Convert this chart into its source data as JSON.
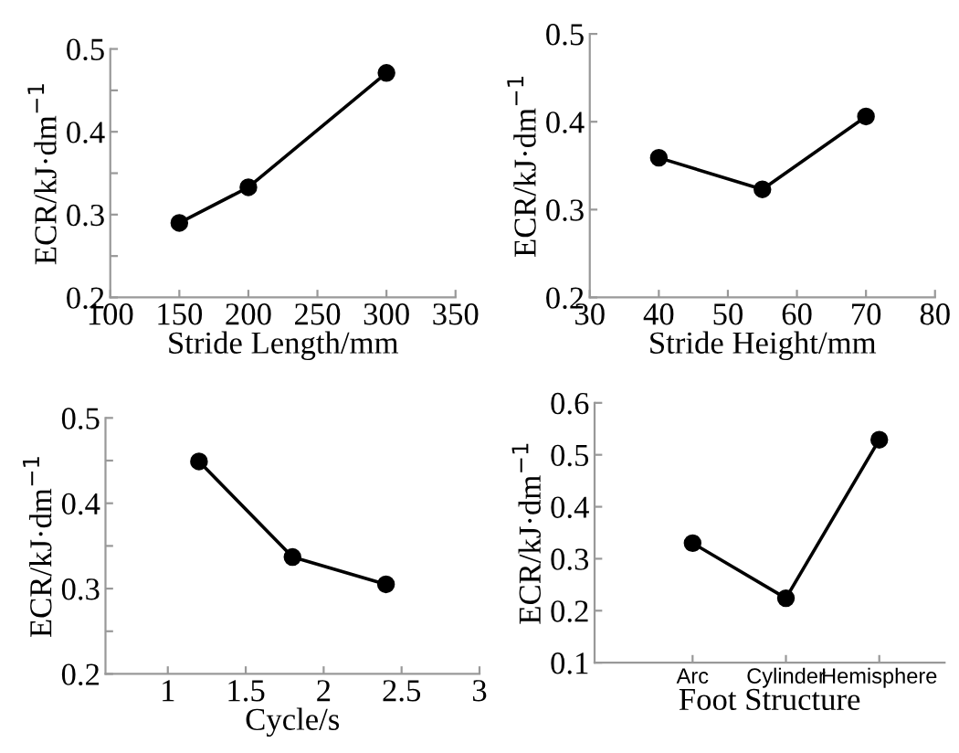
{
  "chart_data": [
    {
      "type": "line",
      "xlabel": "Stride Length/mm",
      "ylabel": "ECR/kJ·dm$^{−1}$",
      "x": [
        150,
        200,
        300
      ],
      "values": [
        0.29,
        0.333,
        0.471
      ],
      "color": "#000000",
      "marker": "circle",
      "line_style": "solid",
      "grid": false,
      "xlim": [
        100,
        350
      ],
      "xticks": [
        100,
        150,
        200,
        250,
        300,
        350
      ],
      "ylim": [
        0.2,
        0.5
      ],
      "yticks": [
        0.2,
        {
          "value": 0.25,
          "label": null
        },
        0.3,
        {
          "value": 0.35,
          "label": null
        },
        0.4,
        {
          "value": 0.45,
          "label": null
        },
        0.5
      ]
    },
    {
      "type": "line",
      "xlabel": "Stride Height/mm",
      "ylabel": "ECR/kJ·dm$^{−1}$",
      "x": [
        40,
        55,
        70
      ],
      "values": [
        0.359,
        0.323,
        0.406
      ],
      "color": "#000000",
      "marker": "circle",
      "line_style": "solid",
      "grid": false,
      "xlim": [
        30,
        80
      ],
      "xticks": [
        30,
        40,
        50,
        60,
        70,
        80
      ],
      "ylim": [
        0.2,
        0.5
      ],
      "yticks": [
        0.2,
        0.3,
        0.4,
        0.5
      ]
    },
    {
      "type": "line",
      "xlabel": "Cycle/s",
      "ylabel": "ECR/kJ·dm$^{−1}$",
      "x": [
        1.2,
        1.8,
        2.4
      ],
      "values": [
        0.449,
        0.337,
        0.305
      ],
      "color": "#000000",
      "marker": "circle",
      "line_style": "solid",
      "grid": false,
      "xlim": [
        0.6,
        3
      ],
      "xticks": [
        1,
        1.5,
        2,
        2.5,
        3
      ],
      "ylim": [
        0.2,
        0.5
      ],
      "yticks": [
        0.2,
        {
          "value": 0.25,
          "label": null
        },
        0.3,
        {
          "value": 0.35,
          "label": null
        },
        0.4,
        {
          "value": 0.45,
          "label": null
        },
        0.5
      ]
    },
    {
      "type": "line",
      "xlabel": "Foot Structure",
      "ylabel": "ECR/kJ·dm$^{−1}$",
      "categories": [
        "Arc",
        "Cylinder",
        "Hemisphere"
      ],
      "values": [
        0.33,
        0.224,
        0.529
      ],
      "color": "#000000",
      "marker": "circle",
      "line_style": "solid",
      "grid": false,
      "ylim": [
        0.1,
        0.6
      ],
      "yticks": [
        0.1,
        0.2,
        0.3,
        0.4,
        0.5,
        0.6
      ]
    }
  ]
}
